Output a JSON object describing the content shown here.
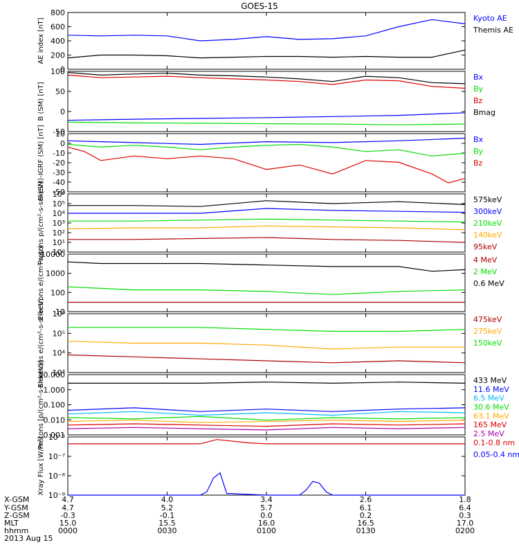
{
  "title": "GOES-15",
  "date_label": "2013 Aug 15",
  "colors": {
    "black": "#000000",
    "blue": "#0000ff",
    "green": "#00dd00",
    "red": "#dd0000",
    "darkred": "#aa0000",
    "orange": "#ffaa00",
    "cyan": "#00bbff",
    "purple": "#aa00aa"
  },
  "x_axis": {
    "rows": [
      {
        "label": "X-GSM",
        "values": [
          "4.7",
          "4.0",
          "3.4",
          "2.6",
          "1.8"
        ]
      },
      {
        "label": "Y-GSM",
        "values": [
          "4.7",
          "5.2",
          "5.7",
          "6.1",
          "6.4"
        ]
      },
      {
        "label": "Z-GSM",
        "values": [
          "-0.3",
          "-0.1",
          "0.0",
          "0.2",
          "0.3"
        ]
      },
      {
        "label": "MLT",
        "values": [
          "15.0",
          "15.5",
          "16.0",
          "16.5",
          "17.0"
        ]
      },
      {
        "label": "hhmm",
        "values": [
          "0000",
          "0030",
          "0100",
          "0130",
          "0200"
        ]
      }
    ]
  },
  "chart_data": [
    {
      "type": "line",
      "ylabel": "AE index [nT]",
      "yscale": "linear",
      "ylim": [
        0,
        800
      ],
      "yticks": [
        "0",
        "200",
        "400",
        "600",
        "800"
      ],
      "series": [
        {
          "name": "Kyoto AE",
          "color": "#0000ff",
          "x": [
            0,
            10,
            20,
            30,
            40,
            50,
            60,
            70,
            80,
            90,
            100,
            110,
            120
          ],
          "y": [
            480,
            470,
            480,
            470,
            400,
            420,
            460,
            420,
            430,
            470,
            600,
            700,
            640
          ]
        },
        {
          "name": "Themis AE",
          "color": "#000000",
          "x": [
            0,
            10,
            20,
            30,
            40,
            50,
            60,
            70,
            80,
            90,
            100,
            110,
            120
          ],
          "y": [
            160,
            200,
            200,
            190,
            160,
            170,
            180,
            180,
            170,
            180,
            170,
            170,
            270
          ]
        }
      ]
    },
    {
      "type": "line",
      "ylabel": "B (SM) [nT]",
      "yscale": "linear",
      "ylim": [
        -55,
        105
      ],
      "yticks": [
        "-50",
        "0",
        "50",
        "100"
      ],
      "series": [
        {
          "name": "Bx",
          "color": "#0000ff",
          "x": [
            0,
            20,
            40,
            60,
            80,
            100,
            120
          ],
          "y": [
            -25,
            -22,
            -20,
            -18,
            -15,
            -12,
            -5
          ]
        },
        {
          "name": "By",
          "color": "#00dd00",
          "x": [
            0,
            20,
            40,
            60,
            80,
            100,
            120
          ],
          "y": [
            -30,
            -32,
            -33,
            -34,
            -35,
            -37,
            -35
          ]
        },
        {
          "name": "Bz",
          "color": "#dd0000",
          "x": [
            0,
            10,
            20,
            30,
            40,
            50,
            60,
            70,
            80,
            90,
            100,
            110,
            120
          ],
          "y": [
            95,
            88,
            90,
            92,
            88,
            85,
            82,
            78,
            70,
            82,
            80,
            65,
            60
          ]
        },
        {
          "name": "Bmag",
          "color": "#000000",
          "x": [
            0,
            10,
            20,
            30,
            40,
            50,
            60,
            70,
            80,
            90,
            100,
            110,
            120
          ],
          "y": [
            102,
            95,
            98,
            100,
            95,
            93,
            90,
            85,
            78,
            92,
            88,
            75,
            72
          ]
        }
      ]
    },
    {
      "type": "line",
      "ylabel": "B (SM)-IGRF (SM) [nT]",
      "yscale": "linear",
      "ylim": [
        -55,
        10
      ],
      "yticks": [
        "-50",
        "-40",
        "-30",
        "-20",
        "-10",
        "0",
        "10"
      ],
      "series": [
        {
          "name": "Bx",
          "color": "#0000ff",
          "x": [
            0,
            20,
            40,
            60,
            80,
            100,
            120
          ],
          "y": [
            2,
            0,
            -2,
            1,
            0,
            2,
            5
          ]
        },
        {
          "name": "By",
          "color": "#00dd00",
          "x": [
            0,
            10,
            20,
            30,
            40,
            50,
            60,
            70,
            80,
            90,
            100,
            110,
            120
          ],
          "y": [
            -2,
            -5,
            -3,
            -5,
            -8,
            -5,
            -3,
            -2,
            -5,
            -10,
            -8,
            -15,
            -12
          ]
        },
        {
          "name": "Bz",
          "color": "#dd0000",
          "x": [
            0,
            5,
            10,
            20,
            30,
            40,
            50,
            60,
            70,
            80,
            90,
            100,
            110,
            115,
            120
          ],
          "y": [
            -5,
            -10,
            -20,
            -15,
            -18,
            -15,
            -18,
            -30,
            -25,
            -35,
            -20,
            -22,
            -35,
            -45,
            -40
          ]
        }
      ]
    },
    {
      "type": "line",
      "ylabel": "Protons p/(cm²-s-sr-keV)",
      "yscale": "log",
      "ylim": [
        0,
        6
      ],
      "yticks": [
        "10⁰",
        "10¹",
        "10²",
        "10³",
        "10⁴",
        "10⁵",
        "10⁶"
      ],
      "series": [
        {
          "name": "575keV",
          "color": "#000000",
          "x": [
            0,
            20,
            40,
            60,
            80,
            100,
            120
          ],
          "y": [
            4.8,
            4.8,
            4.7,
            5.3,
            5.0,
            5.2,
            4.9
          ]
        },
        {
          "name": "300keV",
          "color": "#0000ff",
          "x": [
            0,
            20,
            40,
            60,
            80,
            100,
            120
          ],
          "y": [
            4.0,
            4.0,
            4.0,
            4.5,
            4.3,
            4.2,
            4.1
          ]
        },
        {
          "name": "210keV",
          "color": "#00dd00",
          "x": [
            0,
            20,
            40,
            60,
            80,
            100,
            120
          ],
          "y": [
            3.2,
            3.2,
            3.3,
            3.4,
            3.3,
            3.2,
            3.1
          ]
        },
        {
          "name": "140keV",
          "color": "#ffaa00",
          "x": [
            0,
            20,
            40,
            60,
            80,
            100,
            120
          ],
          "y": [
            2.4,
            2.5,
            2.5,
            2.7,
            2.6,
            2.5,
            2.3
          ]
        },
        {
          "name": "95keV",
          "color": "#aa0000",
          "x": [
            0,
            20,
            40,
            60,
            80,
            100,
            120
          ],
          "y": [
            1.3,
            1.3,
            1.4,
            1.5,
            1.3,
            1.2,
            1.0
          ]
        }
      ]
    },
    {
      "type": "line",
      "ylabel": "Electrons e/(cm²-s-sr)",
      "yscale": "log",
      "ylim": [
        0.5,
        4.2
      ],
      "yticks": [
        "10",
        "100",
        "1000",
        "10000"
      ],
      "series": [
        {
          "name": "4 MeV",
          "color": "#aa0000",
          "x": [
            0,
            20,
            40,
            60,
            80,
            100,
            120
          ],
          "y": [
            1.1,
            1.1,
            1.1,
            1.1,
            1.1,
            1.1,
            1.1
          ]
        },
        {
          "name": "2 MeV",
          "color": "#00dd00",
          "x": [
            0,
            10,
            20,
            40,
            60,
            80,
            100,
            120
          ],
          "y": [
            2.1,
            2.0,
            1.9,
            1.9,
            1.8,
            1.6,
            1.8,
            1.9
          ]
        },
        {
          "name": "0.6 MeV",
          "color": "#000000",
          "x": [
            0,
            10,
            20,
            40,
            60,
            80,
            100,
            110,
            120
          ],
          "y": [
            3.7,
            3.6,
            3.6,
            3.6,
            3.5,
            3.4,
            3.4,
            3.1,
            3.2
          ]
        }
      ]
    },
    {
      "type": "line",
      "ylabel": "Electrons e/(cm²-s-sr-keV)",
      "yscale": "log",
      "ylim": [
        3,
        6
      ],
      "yticks": [
        "10³",
        "10⁴",
        "10⁵",
        "10⁶"
      ],
      "series": [
        {
          "name": "475keV",
          "color": "#aa0000",
          "x": [
            0,
            20,
            40,
            60,
            80,
            100,
            120
          ],
          "y": [
            3.9,
            3.8,
            3.7,
            3.6,
            3.5,
            3.6,
            3.5
          ]
        },
        {
          "name": "275keV",
          "color": "#ffaa00",
          "x": [
            0,
            20,
            40,
            60,
            80,
            100,
            120
          ],
          "y": [
            4.6,
            4.5,
            4.5,
            4.4,
            4.2,
            4.3,
            4.3
          ]
        },
        {
          "name": "150keV",
          "color": "#00dd00",
          "x": [
            0,
            20,
            40,
            60,
            80,
            100,
            120
          ],
          "y": [
            5.3,
            5.3,
            5.3,
            5.2,
            5.1,
            5.1,
            5.2
          ]
        }
      ]
    },
    {
      "type": "line",
      "ylabel": "Protons [p/(cm²-s-sr-keV)]",
      "yscale": "log",
      "ylim": [
        -3.2,
        1.7
      ],
      "yticks": [
        "0.001",
        "0.010",
        "0.100",
        "1.000",
        "10.000"
      ],
      "series": [
        {
          "name": "433 MeV",
          "color": "#000000",
          "x": [
            0,
            20,
            40,
            60,
            80,
            100,
            120
          ],
          "y": [
            1.0,
            1.0,
            1.0,
            1.1,
            1.0,
            1.1,
            1.0
          ]
        },
        {
          "name": "11.6 MeV",
          "color": "#0000ff",
          "x": [
            0,
            20,
            40,
            60,
            80,
            100,
            120
          ],
          "y": [
            -1.2,
            -1.0,
            -1.3,
            -1.1,
            -1.3,
            -1.1,
            -1.0
          ]
        },
        {
          "name": "6.5 MeV",
          "color": "#00bbff",
          "x": [
            0,
            20,
            40,
            60,
            80,
            100,
            120
          ],
          "y": [
            -1.5,
            -1.3,
            -1.6,
            -1.4,
            -1.6,
            -1.3,
            -1.4
          ]
        },
        {
          "name": "30.6 MeV",
          "color": "#00dd00",
          "x": [
            0,
            20,
            40,
            60,
            80,
            100,
            120
          ],
          "y": [
            -1.8,
            -1.9,
            -1.7,
            -2.0,
            -1.8,
            -1.9,
            -1.8
          ]
        },
        {
          "name": "63.1 MeV",
          "color": "#ffaa00",
          "x": [
            0,
            20,
            40,
            60,
            80,
            100,
            120
          ],
          "y": [
            -2.1,
            -2.0,
            -2.2,
            -2.1,
            -2.0,
            -2.1,
            -2.0
          ]
        },
        {
          "name": "165 MeV",
          "color": "#dd0000",
          "x": [
            0,
            20,
            40,
            60,
            80,
            100,
            120
          ],
          "y": [
            -2.4,
            -2.3,
            -2.4,
            -2.5,
            -2.3,
            -2.4,
            -2.3
          ]
        },
        {
          "name": "2.5 MeV",
          "color": "#aa00aa",
          "x": [
            0,
            20,
            40,
            60,
            80,
            100,
            120
          ],
          "y": [
            -2.7,
            -2.6,
            -2.7,
            -2.8,
            -2.6,
            -2.7,
            -2.6
          ]
        }
      ]
    },
    {
      "type": "line",
      "ylabel": "Xray Flux [W/m²]",
      "yscale": "log",
      "ylim": [
        -9.3,
        -5.9
      ],
      "yticks": [
        "10⁻⁹",
        "10⁻⁸",
        "10⁻⁷",
        "10⁻⁶"
      ],
      "series": [
        {
          "name": "0.1-0.8 nm",
          "color": "#dd0000",
          "x": [
            0,
            20,
            40,
            45,
            55,
            60,
            80,
            100,
            120
          ],
          "y": [
            -6.3,
            -6.3,
            -6.3,
            -6.05,
            -6.25,
            -6.3,
            -6.3,
            -6.3,
            -6.3
          ]
        },
        {
          "name": "0.05-0.4 nm",
          "color": "#0000ff",
          "x": [
            0,
            40,
            42,
            44,
            46,
            48,
            60,
            70,
            72,
            74,
            76,
            78,
            80,
            120
          ],
          "y": [
            -9.4,
            -9.4,
            -9.1,
            -8.3,
            -8.0,
            -9.2,
            -9.4,
            -9.4,
            -9.0,
            -8.5,
            -8.6,
            -9.1,
            -9.4,
            -9.4
          ]
        }
      ]
    }
  ]
}
